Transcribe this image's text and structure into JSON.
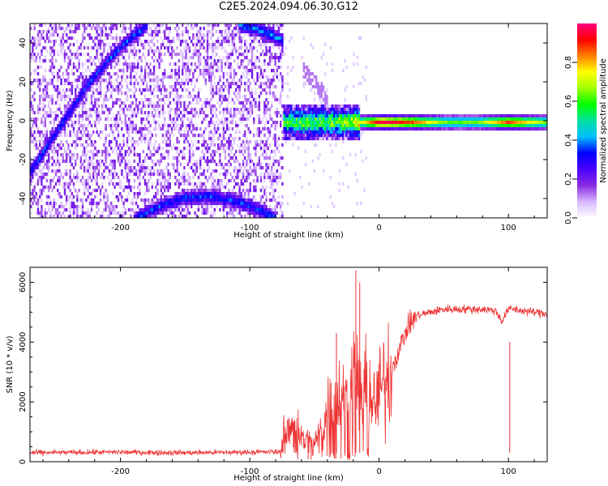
{
  "figure_title": "C2E5.2024.094.06.30.G12",
  "chart_data": [
    {
      "type": "heatmap",
      "title": "C2E5.2024.094.06.30.G12",
      "xlabel": "Height of straight line (km)",
      "ylabel": "Frequency (Hz)",
      "xlim": [
        -270,
        130
      ],
      "ylim": [
        -50,
        50
      ],
      "xticks": [
        -200,
        -100,
        0,
        100
      ],
      "yticks": [
        -40,
        -20,
        0,
        20,
        40
      ],
      "colorbar": {
        "label": "Normalized spectral amplitude",
        "range": [
          0,
          1
        ],
        "ticks": [
          0.0,
          0.2,
          0.4,
          0.6,
          0.8
        ],
        "colormap": [
          "#ffffff",
          "#d8b8ff",
          "#8a2be2",
          "#4b00ff",
          "#0000ff",
          "#00bfff",
          "#00e0a0",
          "#00ff00",
          "#a0ff00",
          "#ffff00",
          "#ff8000",
          "#ff0000",
          "#ff0080"
        ]
      },
      "features": [
        {
          "name": "noise_region",
          "x_range": [
            -270,
            -75
          ],
          "freq_range": [
            -50,
            50
          ],
          "amplitude": 0.15
        },
        {
          "name": "rising_track",
          "x": [
            -270,
            -255,
            -240,
            -225,
            -210,
            -195,
            -180
          ],
          "freq": [
            -25,
            -10,
            5,
            20,
            32,
            42,
            50
          ],
          "amplitude": 0.3
        },
        {
          "name": "upper_arc",
          "x": [
            -110,
            -95,
            -82,
            -75
          ],
          "freq": [
            50,
            48,
            44,
            42
          ],
          "amplitude": 0.35
        },
        {
          "name": "lower_arc",
          "x": [
            -190,
            -170,
            -150,
            -130,
            -110,
            -90,
            -80
          ],
          "freq": [
            -50,
            -43,
            -39,
            -38,
            -41,
            -46,
            -50
          ],
          "amplitude": 0.3
        },
        {
          "name": "faint_branch",
          "x": [
            -60,
            -50,
            -40
          ],
          "freq": [
            27,
            20,
            12
          ],
          "amplitude": 0.12
        },
        {
          "name": "carrier_line",
          "x": [
            -75,
            -50,
            -25,
            0,
            25,
            50,
            75,
            100,
            130
          ],
          "freq": [
            0,
            0,
            0,
            0,
            0,
            0,
            0,
            0,
            0
          ],
          "amplitude": [
            0.45,
            0.45,
            0.5,
            0.95,
            0.85,
            0.6,
            0.6,
            0.85,
            0.6
          ]
        }
      ]
    },
    {
      "type": "line",
      "xlabel": "Height of straight line (km)",
      "ylabel": "SNR (10 * v/v)",
      "xlim": [
        -270,
        130
      ],
      "ylim": [
        0,
        6500
      ],
      "xticks": [
        -200,
        -100,
        0,
        100
      ],
      "yticks": [
        0,
        2000,
        4000,
        6000
      ],
      "color": "#ee3333",
      "series": [
        {
          "x": [
            -270,
            -200,
            -150,
            -100,
            -76,
            -74,
            -70,
            -65,
            -60,
            -55,
            -50,
            -45,
            -40,
            -35,
            -30,
            -25,
            -20,
            -15,
            -10,
            -5,
            0,
            5,
            10,
            15,
            20,
            25,
            30,
            40,
            50,
            60,
            70,
            80,
            90,
            95,
            100,
            105,
            110,
            120,
            130
          ],
          "y": [
            300,
            320,
            300,
            320,
            330,
            1000,
            900,
            1500,
            800,
            700,
            600,
            1000,
            1700,
            2000,
            2200,
            2100,
            3000,
            2400,
            2300,
            1800,
            2300,
            2700,
            3100,
            3700,
            4300,
            4700,
            4900,
            5000,
            5100,
            5100,
            5100,
            5100,
            5050,
            4700,
            5100,
            5100,
            5050,
            5000,
            4950
          ]
        }
      ],
      "spikes": [
        {
          "x": -18,
          "y": 6400
        },
        {
          "x": -15,
          "y": 6000
        },
        {
          "x": -33,
          "y": 4300
        },
        {
          "x": 101,
          "y": 4000
        }
      ]
    }
  ]
}
